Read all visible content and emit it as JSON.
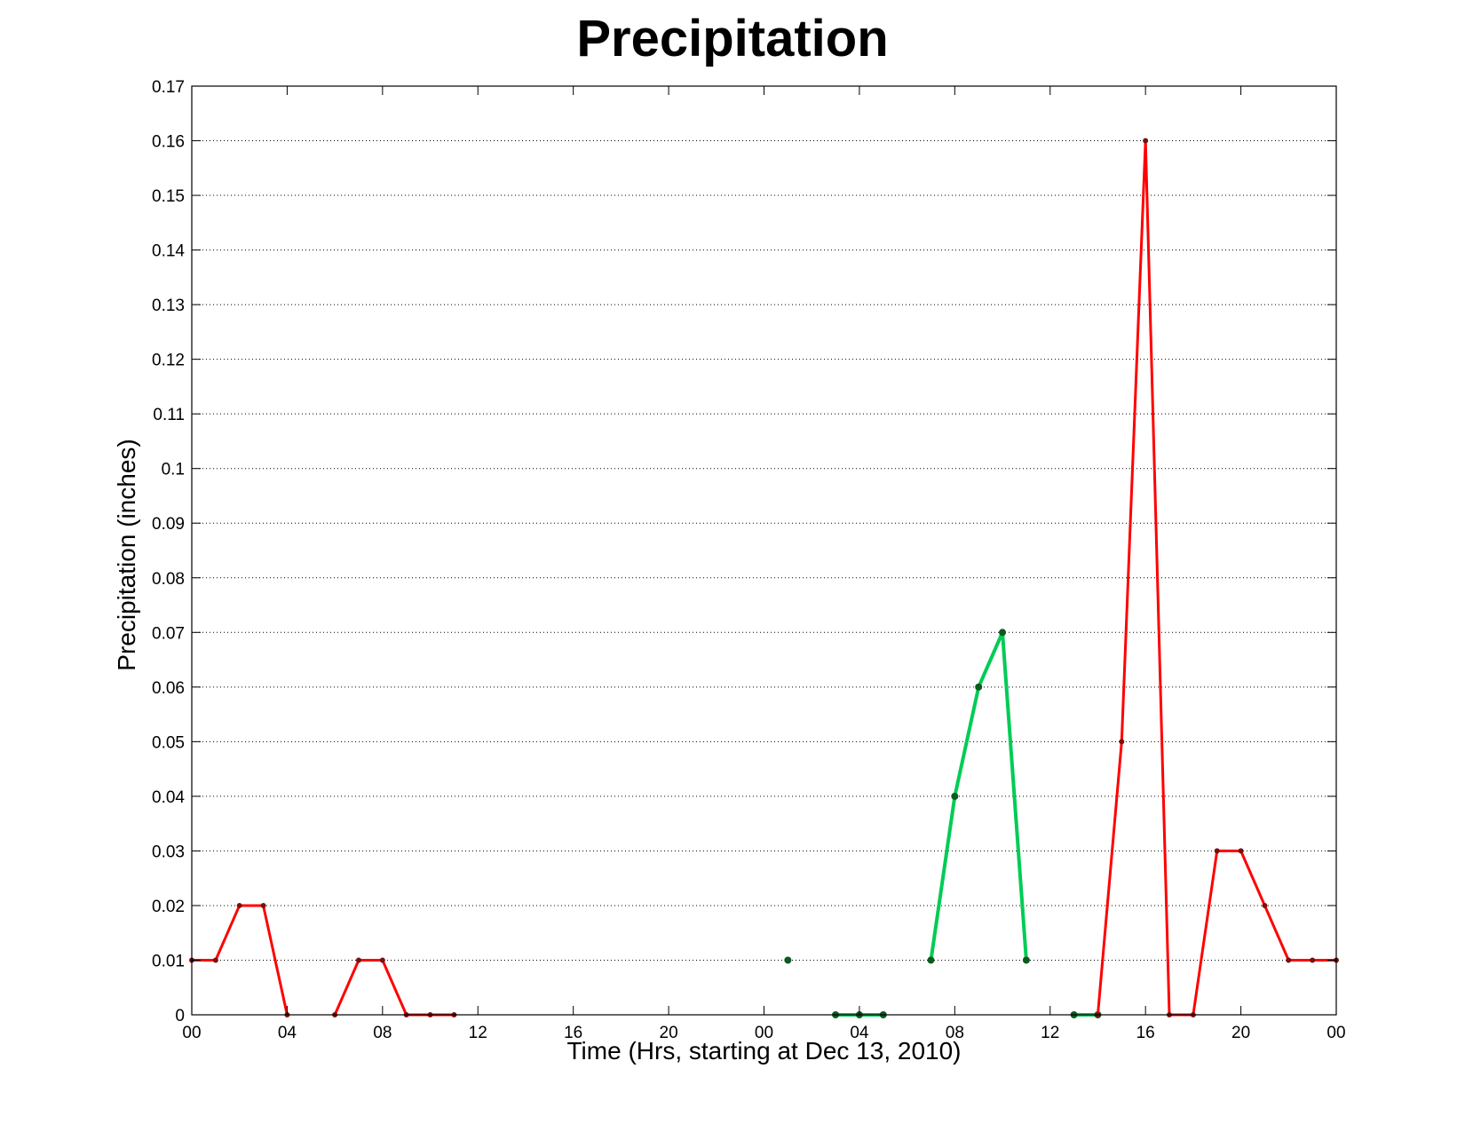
{
  "chart_data": {
    "type": "line",
    "title": "Precipitation",
    "xlabel": "Time (Hrs, starting at Dec 13, 2010)",
    "ylabel": "Precipitation (inches)",
    "x_unit": "hours",
    "xlim": [
      0,
      48
    ],
    "ylim": [
      0,
      0.17
    ],
    "x_ticks": [
      {
        "value": 0,
        "label": "00"
      },
      {
        "value": 4,
        "label": "04"
      },
      {
        "value": 8,
        "label": "08"
      },
      {
        "value": 12,
        "label": "12"
      },
      {
        "value": 16,
        "label": "16"
      },
      {
        "value": 20,
        "label": "20"
      },
      {
        "value": 24,
        "label": "00"
      },
      {
        "value": 28,
        "label": "04"
      },
      {
        "value": 32,
        "label": "08"
      },
      {
        "value": 36,
        "label": "12"
      },
      {
        "value": 40,
        "label": "16"
      },
      {
        "value": 44,
        "label": "20"
      },
      {
        "value": 48,
        "label": "00"
      }
    ],
    "y_ticks": [
      {
        "value": 0,
        "label": "0"
      },
      {
        "value": 0.01,
        "label": "0.01"
      },
      {
        "value": 0.02,
        "label": "0.02"
      },
      {
        "value": 0.03,
        "label": "0.03"
      },
      {
        "value": 0.04,
        "label": "0.04"
      },
      {
        "value": 0.05,
        "label": "0.05"
      },
      {
        "value": 0.06,
        "label": "0.06"
      },
      {
        "value": 0.07,
        "label": "0.07"
      },
      {
        "value": 0.08,
        "label": "0.08"
      },
      {
        "value": 0.09,
        "label": "0.09"
      },
      {
        "value": 0.1,
        "label": "0.1"
      },
      {
        "value": 0.11,
        "label": "0.11"
      },
      {
        "value": 0.12,
        "label": "0.12"
      },
      {
        "value": 0.13,
        "label": "0.13"
      },
      {
        "value": 0.14,
        "label": "0.14"
      },
      {
        "value": 0.15,
        "label": "0.15"
      },
      {
        "value": 0.16,
        "label": "0.16"
      },
      {
        "value": 0.17,
        "label": "0.17"
      }
    ],
    "grid": true,
    "grid_style": "dotted",
    "series": [
      {
        "color": "#ff0000",
        "marker_color": "#7a1010",
        "points": [
          [
            0,
            0.01
          ],
          [
            1,
            0.01
          ],
          [
            2,
            0.02
          ],
          [
            3,
            0.02
          ],
          [
            4,
            0
          ]
        ]
      },
      {
        "color": "#ff0000",
        "marker_color": "#7a1010",
        "points": [
          [
            6,
            0
          ],
          [
            7,
            0.01
          ],
          [
            8,
            0.01
          ],
          [
            9,
            0
          ],
          [
            10,
            0
          ],
          [
            11,
            0
          ]
        ]
      },
      {
        "color": "#00cc55",
        "marker_color": "#0b5a1e",
        "points": [
          [
            25,
            0.01
          ]
        ]
      },
      {
        "color": "#00cc55",
        "marker_color": "#0b5a1e",
        "points": [
          [
            27,
            0
          ],
          [
            28,
            0
          ],
          [
            29,
            0
          ]
        ]
      },
      {
        "color": "#00cc55",
        "marker_color": "#0b5a1e",
        "points": [
          [
            31,
            0.01
          ],
          [
            32,
            0.04
          ],
          [
            33,
            0.06
          ],
          [
            34,
            0.07
          ],
          [
            35,
            0.01
          ]
        ]
      },
      {
        "color": "#00cc55",
        "marker_color": "#0b5a1e",
        "points": [
          [
            37,
            0
          ],
          [
            38,
            0
          ]
        ]
      },
      {
        "color": "#ff0000",
        "marker_color": "#7a1010",
        "points": [
          [
            38,
            0
          ],
          [
            39,
            0.05
          ],
          [
            40,
            0.16
          ],
          [
            41,
            0
          ],
          [
            42,
            0
          ],
          [
            43,
            0.03
          ],
          [
            44,
            0.03
          ],
          [
            45,
            0.02
          ],
          [
            46,
            0.01
          ],
          [
            47,
            0.01
          ],
          [
            48,
            0.01
          ]
        ]
      }
    ]
  }
}
